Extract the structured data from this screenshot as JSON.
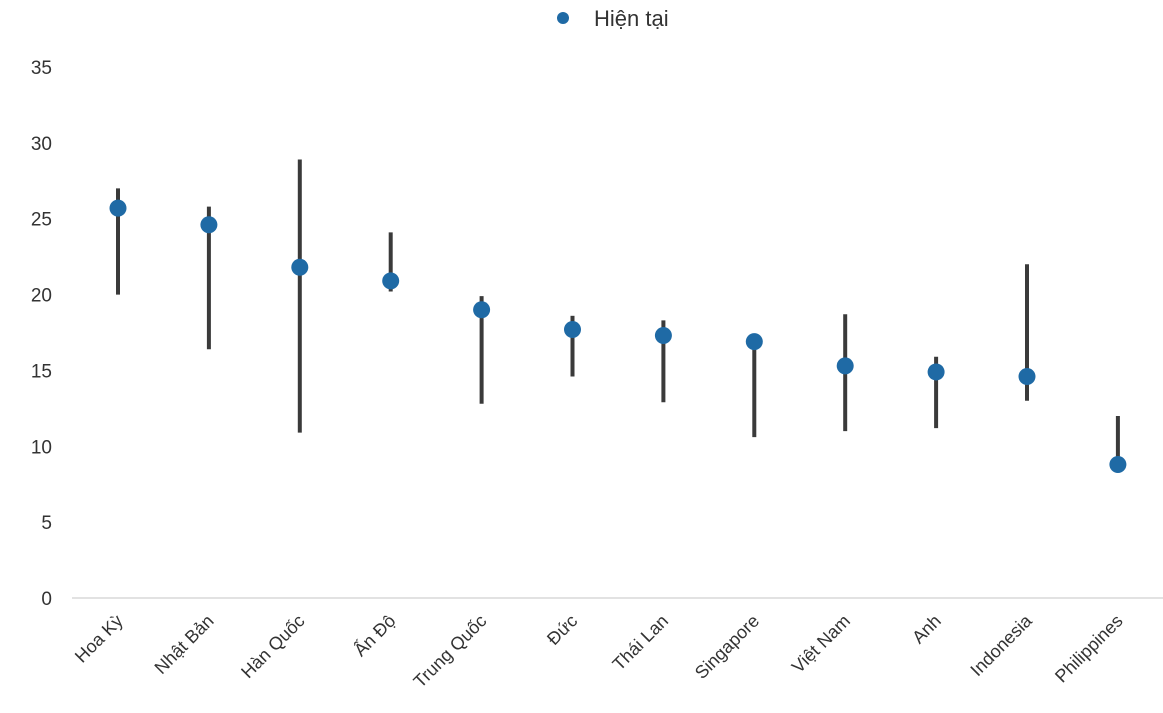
{
  "chart_data": {
    "type": "scatter",
    "title": "",
    "xlabel": "",
    "ylabel": "",
    "ylim": [
      0,
      35
    ],
    "yticks": [
      0,
      5,
      10,
      15,
      20,
      25,
      30,
      35
    ],
    "grid": false,
    "legend_position": "top-center",
    "categories": [
      "Hoa Kỳ",
      "Nhật Bản",
      "Hàn Quốc",
      "Ấn Độ",
      "Trung Quốc",
      "Đức",
      "Thái Lan",
      "Singapore",
      "Việt Nam",
      "Anh",
      "Indonesia",
      "Philippines"
    ],
    "series": [
      {
        "name": "Hiện tại",
        "values": [
          25.7,
          24.6,
          21.8,
          20.9,
          19.0,
          17.7,
          17.3,
          16.9,
          15.3,
          14.9,
          14.6,
          8.8
        ]
      }
    ],
    "ranges": {
      "low": [
        20.0,
        16.4,
        10.9,
        20.2,
        12.8,
        14.6,
        12.9,
        10.6,
        11.0,
        11.2,
        13.0,
        8.8
      ],
      "high": [
        27.0,
        25.8,
        28.9,
        24.1,
        19.9,
        18.6,
        18.3,
        17.0,
        18.7,
        15.9,
        22.0,
        12.0
      ]
    },
    "colors": {
      "marker": "#1f6aa5",
      "range_line": "#3a3a3a",
      "axis_line": "#d9d9d9",
      "text": "#333333"
    }
  }
}
